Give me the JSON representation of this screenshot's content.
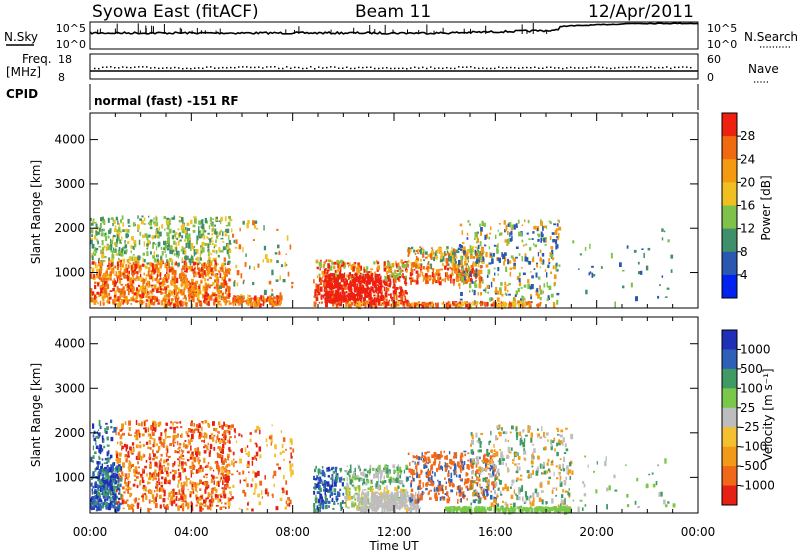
{
  "header": {
    "station_title": "Syowa East (fitACF)",
    "beam_label": "Beam 11",
    "date_label": "12/Apr/2011"
  },
  "top_panels": {
    "nsky_label": "N.Sky",
    "nsearch_label": "N.Search",
    "nsky_ticks": [
      "10^5",
      "10^0"
    ],
    "nsearch_ticks": [
      "10^5",
      "10^0"
    ],
    "freq_label": "Freq.",
    "freq_unit": "[MHz]",
    "freq_ticks": [
      "18",
      "8"
    ],
    "nave_label": "Nave",
    "nave_ticks": [
      "60",
      "0"
    ],
    "cpid_label": "CPID",
    "cpid_value": "normal (fast) -151 RF"
  },
  "x_axis": {
    "label": "Time UT",
    "ticks": [
      "00:00",
      "04:00",
      "08:00",
      "12:00",
      "16:00",
      "20:00",
      "00:00"
    ]
  },
  "colors": {
    "power_scale": [
      "#0022ee",
      "#2a57b0",
      "#3f8f6a",
      "#7fc24a",
      "#f0c020",
      "#f59a10",
      "#f06a10",
      "#ee2010"
    ],
    "velocity_scale": [
      "#1f2fb8",
      "#2e60b8",
      "#3f9a63",
      "#79c84a",
      "#bdbdbd",
      "#f5c030",
      "#f29a18",
      "#f06818",
      "#e62012"
    ]
  },
  "chart_data": [
    {
      "type": "heatmap",
      "title": "Power",
      "xlabel": "Time UT",
      "ylabel": "Slant Range [km]",
      "xlim_hours": [
        0,
        24
      ],
      "ylim_km": [
        200,
        4600
      ],
      "yticks": [
        "1000",
        "2000",
        "3000",
        "4000"
      ],
      "colorbar_label": "Power [dB]",
      "colorbar_ticks": [
        "4",
        "8",
        "12",
        "16",
        "20",
        "24",
        "28"
      ],
      "colorbar_range_dB": [
        0,
        32
      ]
    },
    {
      "type": "heatmap",
      "title": "Velocity",
      "xlabel": "Time UT",
      "ylabel": "Slant Range [km]",
      "xlim_hours": [
        0,
        24
      ],
      "ylim_km": [
        200,
        4600
      ],
      "yticks": [
        "1000",
        "2000",
        "3000",
        "4000"
      ],
      "colorbar_label": "Velocity [m s⁻¹]",
      "colorbar_ticks": [
        "1000",
        "500",
        "100",
        "25",
        "-25",
        "-100",
        "-500",
        "-1000"
      ]
    }
  ]
}
